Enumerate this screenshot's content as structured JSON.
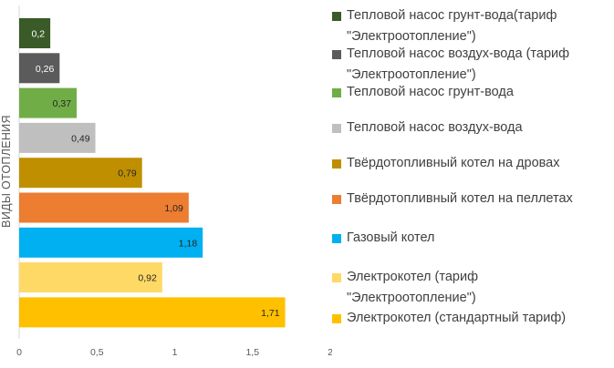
{
  "chart_data": {
    "type": "bar",
    "orientation": "horizontal",
    "ylabel": "ВИДЫ ОТОПЛЕНИЯ",
    "xlim": [
      0,
      2
    ],
    "x_ticks": [
      "0",
      "0,5",
      "1",
      "1,5",
      "2"
    ],
    "grid": false,
    "legend_position": "right",
    "series": [
      {
        "name": "Тепловой насос грунт-вода(тариф\n\"Электроотопление\")",
        "value": 0.2,
        "label": "0,2",
        "color": "#3a5a27",
        "label_color": "#ffffff"
      },
      {
        "name": "Тепловой насос воздух-вода (тариф\n\"Электроотопление\")",
        "value": 0.26,
        "label": "0,26",
        "color": "#5b5b5b",
        "label_color": "#ffffff"
      },
      {
        "name": "Тепловой насос грунт-вода",
        "value": 0.37,
        "label": "0,37",
        "color": "#70ad47",
        "label_color": "#262626"
      },
      {
        "name": "Тепловой насос воздух-вода",
        "value": 0.49,
        "label": "0,49",
        "color": "#bfbfbf",
        "label_color": "#262626"
      },
      {
        "name": "Твёрдотопливный котел на дровах",
        "value": 0.79,
        "label": "0,79",
        "color": "#bf8f00",
        "label_color": "#262626"
      },
      {
        "name": "Твёрдотопливный котел на пеллетах",
        "value": 1.09,
        "label": "1,09",
        "color": "#ed7d31",
        "label_color": "#262626"
      },
      {
        "name": "Газовый котел",
        "value": 1.18,
        "label": "1,18",
        "color": "#00b0f0",
        "label_color": "#262626"
      },
      {
        "name": "Электрокотел (тариф\n\"Электроотопление\")",
        "value": 0.92,
        "label": "0,92",
        "color": "#ffd966",
        "label_color": "#262626"
      },
      {
        "name": "Электрокотел (стандартный тариф)",
        "value": 1.71,
        "label": "1,71",
        "color": "#ffc000",
        "label_color": "#262626"
      }
    ]
  }
}
